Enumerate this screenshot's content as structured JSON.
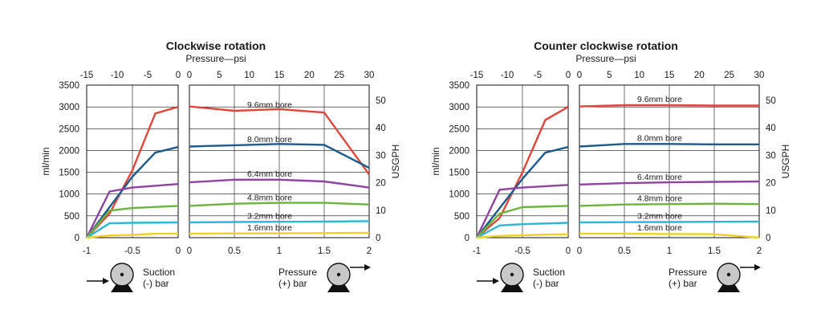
{
  "units": {
    "left_y": "ml/min",
    "right_y": "USGPH",
    "top_x": "Pressure—psi"
  },
  "footer": {
    "suction_line1": "Suction",
    "suction_line2": "(-) bar",
    "pressure_line1": "Pressure",
    "pressure_line2": "(+) bar"
  },
  "bores": [
    "9.6mm bore",
    "8.0mm bore",
    "6.4mm bore",
    "4.8mm bore",
    "3.2mm bore",
    "1.6mm bore"
  ],
  "colors": {
    "9.6": "#e0473c",
    "8.0": "#1d5a8e",
    "6.4": "#8e44a0",
    "4.8": "#6cb33f",
    "3.2": "#2bb7d6",
    "1.6": "#f2cf2a"
  },
  "chart_data": [
    {
      "type": "line",
      "title": "Clockwise rotation",
      "ylabel_left": "ml/min",
      "ylim_left": [
        0,
        3500
      ],
      "yticks_left": [
        "0",
        "500",
        "1000",
        "1500",
        "2000",
        "2500",
        "3000",
        "3500"
      ],
      "ylabel_right": "USGPH",
      "ylim_right": [
        0,
        55.5
      ],
      "yticks_right": [
        "0",
        "10",
        "20",
        "30",
        "40",
        "50"
      ],
      "suction_panel": {
        "xlabel": "(-) bar",
        "xlim": [
          -1,
          0
        ],
        "xticks": [
          "-1",
          "-0.5",
          "0"
        ],
        "top_xlabel": "Pressure—psi",
        "top_xticks": [
          "-15",
          "-10",
          "-5",
          "0"
        ],
        "series": [
          {
            "name": "9.6mm bore",
            "x": [
              -1,
              -0.75,
              -0.5,
              -0.25,
              0
            ],
            "y": [
              0,
              550,
              1550,
              2850,
              3000
            ]
          },
          {
            "name": "8.0mm bore",
            "x": [
              -1,
              -0.5,
              -0.25,
              0
            ],
            "y": [
              0,
              1400,
              1950,
              2080
            ]
          },
          {
            "name": "6.4mm bore",
            "x": [
              -1,
              -0.75,
              -0.5,
              0
            ],
            "y": [
              0,
              1060,
              1150,
              1230
            ]
          },
          {
            "name": "4.8mm bore",
            "x": [
              -1,
              -0.75,
              -0.5,
              0
            ],
            "y": [
              0,
              620,
              680,
              730
            ]
          },
          {
            "name": "3.2mm bore",
            "x": [
              -1,
              -0.75,
              -0.5,
              0
            ],
            "y": [
              0,
              330,
              340,
              350
            ]
          },
          {
            "name": "1.6mm bore",
            "x": [
              -1,
              -0.75,
              -0.5,
              -0.25,
              0
            ],
            "y": [
              0,
              50,
              65,
              90,
              90
            ]
          }
        ]
      },
      "pressure_panel": {
        "xlabel": "(+) bar",
        "xlim": [
          0,
          2
        ],
        "xticks": [
          "0",
          "0.5",
          "1",
          "1.5",
          "2"
        ],
        "top_xlabel": "Pressure—psi",
        "top_xticks": [
          "0",
          "5",
          "10",
          "15",
          "20",
          "25",
          "30"
        ],
        "series": [
          {
            "name": "9.6mm bore",
            "x": [
              0,
              0.5,
              1,
              1.5,
              2
            ],
            "y": [
              3010,
              2910,
              2950,
              2870,
              1450
            ]
          },
          {
            "name": "8.0mm bore",
            "x": [
              0,
              0.5,
              1,
              1.5,
              2
            ],
            "y": [
              2090,
              2120,
              2150,
              2130,
              1600
            ]
          },
          {
            "name": "6.4mm bore",
            "x": [
              0,
              0.5,
              1,
              1.5,
              2
            ],
            "y": [
              1270,
              1330,
              1330,
              1290,
              1150
            ]
          },
          {
            "name": "4.8mm bore",
            "x": [
              0,
              0.5,
              1,
              1.5,
              2
            ],
            "y": [
              730,
              780,
              800,
              800,
              760
            ]
          },
          {
            "name": "3.2mm bore",
            "x": [
              0,
              0.5,
              1,
              1.5,
              2
            ],
            "y": [
              350,
              360,
              365,
              370,
              380
            ]
          },
          {
            "name": "1.6mm bore",
            "x": [
              0,
              0.5,
              1,
              1.5,
              2
            ],
            "y": [
              90,
              95,
              100,
              105,
              110
            ]
          }
        ]
      }
    },
    {
      "type": "line",
      "title": "Counter clockwise rotation",
      "ylabel_left": "ml/min",
      "ylim_left": [
        0,
        3500
      ],
      "yticks_left": [
        "0",
        "500",
        "1000",
        "1500",
        "2000",
        "2500",
        "3000",
        "3500"
      ],
      "ylabel_right": "USGPH",
      "ylim_right": [
        0,
        55.5
      ],
      "yticks_right": [
        "0",
        "10",
        "20",
        "30",
        "40",
        "50"
      ],
      "suction_panel": {
        "xlabel": "(-) bar",
        "xlim": [
          -1,
          0
        ],
        "xticks": [
          "-1",
          "-0.5",
          "0"
        ],
        "top_xlabel": "Pressure—psi",
        "top_xticks": [
          "-15",
          "-10",
          "-5",
          "0"
        ],
        "series": [
          {
            "name": "9.6mm bore",
            "x": [
              -1,
              -0.75,
              -0.5,
              -0.25,
              0
            ],
            "y": [
              0,
              450,
              1500,
              2700,
              3000
            ]
          },
          {
            "name": "8.0mm bore",
            "x": [
              -1,
              -0.5,
              -0.25,
              0
            ],
            "y": [
              0,
              1350,
              1950,
              2080
            ]
          },
          {
            "name": "6.4mm bore",
            "x": [
              -1,
              -0.75,
              -0.5,
              0
            ],
            "y": [
              0,
              1100,
              1150,
              1210
            ]
          },
          {
            "name": "4.8mm bore",
            "x": [
              -1,
              -0.75,
              -0.5,
              0
            ],
            "y": [
              0,
              550,
              700,
              730
            ]
          },
          {
            "name": "3.2mm bore",
            "x": [
              -1,
              -0.75,
              -0.5,
              0
            ],
            "y": [
              0,
              280,
              310,
              340
            ]
          },
          {
            "name": "1.6mm bore",
            "x": [
              -1,
              -0.75,
              -0.5,
              -0.25,
              0
            ],
            "y": [
              0,
              40,
              55,
              70,
              80
            ]
          }
        ]
      },
      "pressure_panel": {
        "xlabel": "(+) bar",
        "xlim": [
          0,
          2
        ],
        "xticks": [
          "0",
          "0.5",
          "1",
          "1.5",
          "2"
        ],
        "top_xlabel": "Pressure—psi",
        "top_xticks": [
          "0",
          "5",
          "10",
          "15",
          "20",
          "25",
          "30"
        ],
        "series": [
          {
            "name": "9.6mm bore",
            "x": [
              0,
              0.5,
              1,
              1.5,
              2
            ],
            "y": [
              3010,
              3040,
              3040,
              3030,
              3030
            ]
          },
          {
            "name": "8.0mm bore",
            "x": [
              0,
              0.5,
              1,
              1.5,
              2
            ],
            "y": [
              2090,
              2150,
              2150,
              2140,
              2140
            ]
          },
          {
            "name": "6.4mm bore",
            "x": [
              0,
              0.5,
              1,
              1.5,
              2
            ],
            "y": [
              1220,
              1250,
              1270,
              1280,
              1290
            ]
          },
          {
            "name": "4.8mm bore",
            "x": [
              0,
              0.5,
              1,
              1.5,
              2
            ],
            "y": [
              730,
              760,
              770,
              780,
              770
            ]
          },
          {
            "name": "3.2mm bore",
            "x": [
              0,
              0.5,
              1,
              1.5,
              2
            ],
            "y": [
              350,
              355,
              360,
              365,
              370
            ]
          },
          {
            "name": "1.6mm bore",
            "x": [
              0,
              0.5,
              1,
              1.5,
              2
            ],
            "y": [
              90,
              90,
              85,
              80,
              0
            ]
          }
        ]
      }
    }
  ]
}
